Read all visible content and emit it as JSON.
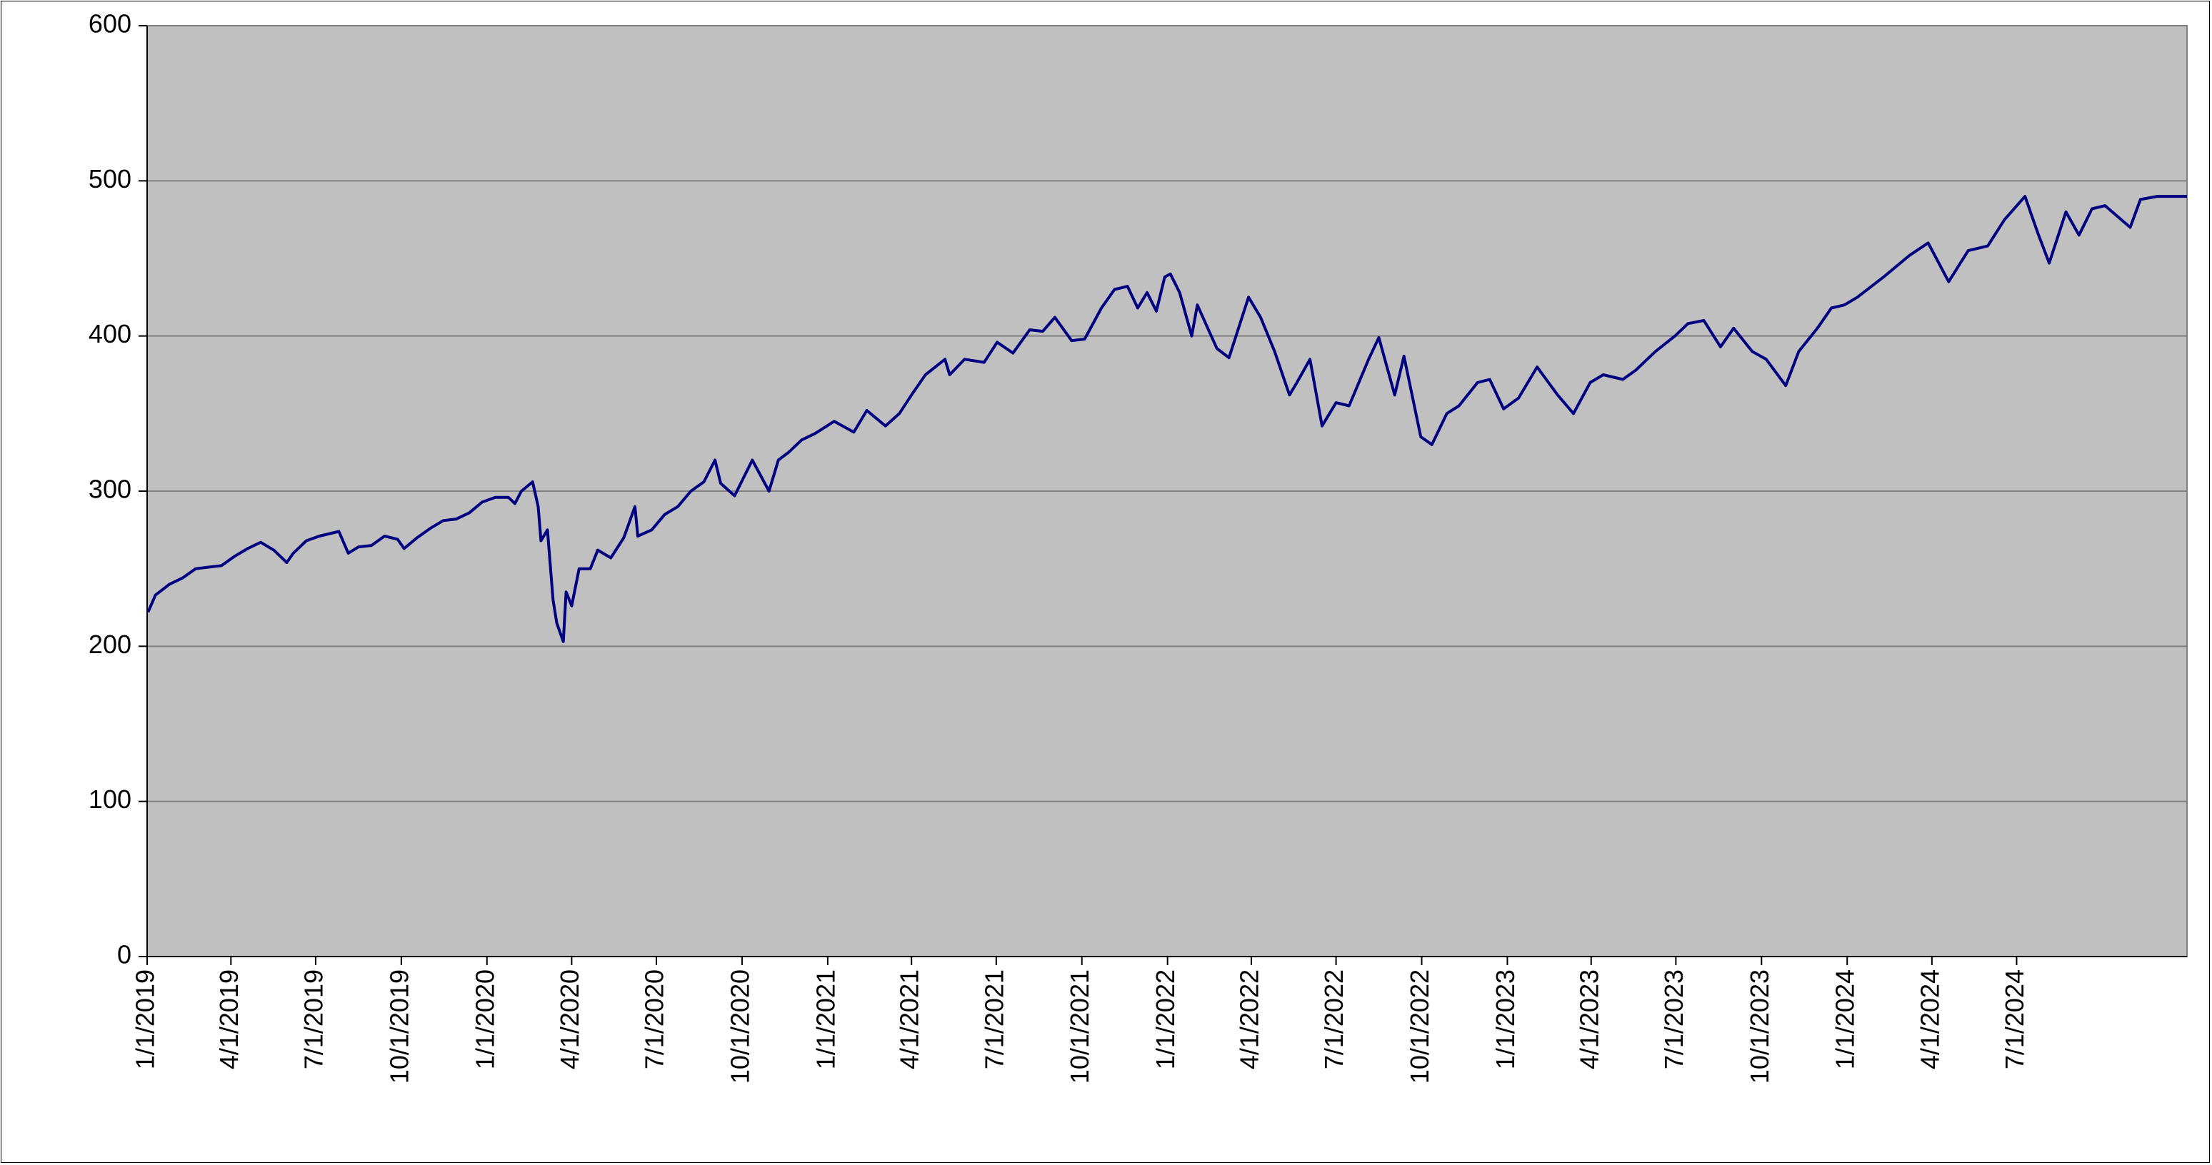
{
  "chart_data": {
    "type": "line",
    "title": "",
    "xlabel": "",
    "ylabel": "",
    "ylim": [
      0,
      600
    ],
    "yticks": [
      "0",
      "100",
      "200",
      "300",
      "400",
      "500",
      "600"
    ],
    "xlim": [
      "2019-01-01",
      "2024-12-31"
    ],
    "xticks": [
      {
        "date": "2019-01-01",
        "label": "1/1/2019"
      },
      {
        "date": "2019-04-01",
        "label": "4/1/2019"
      },
      {
        "date": "2019-07-01",
        "label": "7/1/2019"
      },
      {
        "date": "2019-10-01",
        "label": "10/1/2019"
      },
      {
        "date": "2020-01-01",
        "label": "1/1/2020"
      },
      {
        "date": "2020-04-01",
        "label": "4/1/2020"
      },
      {
        "date": "2020-07-01",
        "label": "7/1/2020"
      },
      {
        "date": "2020-10-01",
        "label": "10/1/2020"
      },
      {
        "date": "2021-01-01",
        "label": "1/1/2021"
      },
      {
        "date": "2021-04-01",
        "label": "4/1/2021"
      },
      {
        "date": "2021-07-01",
        "label": "7/1/2021"
      },
      {
        "date": "2021-10-01",
        "label": "10/1/2021"
      },
      {
        "date": "2022-01-01",
        "label": "1/1/2022"
      },
      {
        "date": "2022-04-01",
        "label": "4/1/2022"
      },
      {
        "date": "2022-07-01",
        "label": "7/1/2022"
      },
      {
        "date": "2022-10-01",
        "label": "10/1/2022"
      },
      {
        "date": "2023-01-01",
        "label": "1/1/2023"
      },
      {
        "date": "2023-04-01",
        "label": "4/1/2023"
      },
      {
        "date": "2023-07-01",
        "label": "7/1/2023"
      },
      {
        "date": "2023-10-01",
        "label": "10/1/2023"
      },
      {
        "date": "2024-01-01",
        "label": "1/1/2024"
      },
      {
        "date": "2024-04-01",
        "label": "4/1/2024"
      },
      {
        "date": "2024-07-01",
        "label": "7/1/2024"
      }
    ],
    "grid": true,
    "legend": "none",
    "colors": {
      "plot_bg": "#c0c0c0",
      "line": "#000080",
      "grid": "#808080"
    },
    "series": [
      {
        "values": [
          [
            "2019-01-02",
            222
          ],
          [
            "2019-01-10",
            233
          ],
          [
            "2019-01-25",
            240
          ],
          [
            "2019-02-08",
            244
          ],
          [
            "2019-02-22",
            250
          ],
          [
            "2019-03-08",
            251
          ],
          [
            "2019-03-22",
            252
          ],
          [
            "2019-04-05",
            258
          ],
          [
            "2019-04-19",
            263
          ],
          [
            "2019-05-03",
            267
          ],
          [
            "2019-05-17",
            262
          ],
          [
            "2019-05-31",
            254
          ],
          [
            "2019-06-07",
            260
          ],
          [
            "2019-06-21",
            268
          ],
          [
            "2019-07-05",
            271
          ],
          [
            "2019-07-26",
            274
          ],
          [
            "2019-08-05",
            260
          ],
          [
            "2019-08-16",
            264
          ],
          [
            "2019-08-30",
            265
          ],
          [
            "2019-09-13",
            271
          ],
          [
            "2019-09-27",
            269
          ],
          [
            "2019-10-04",
            263
          ],
          [
            "2019-10-18",
            270
          ],
          [
            "2019-11-01",
            276
          ],
          [
            "2019-11-15",
            281
          ],
          [
            "2019-11-29",
            282
          ],
          [
            "2019-12-13",
            286
          ],
          [
            "2019-12-27",
            293
          ],
          [
            "2020-01-10",
            296
          ],
          [
            "2020-01-24",
            296
          ],
          [
            "2020-01-31",
            292
          ],
          [
            "2020-02-07",
            300
          ],
          [
            "2020-02-19",
            306
          ],
          [
            "2020-02-25",
            290
          ],
          [
            "2020-02-28",
            268
          ],
          [
            "2020-03-06",
            275
          ],
          [
            "2020-03-12",
            230
          ],
          [
            "2020-03-16",
            215
          ],
          [
            "2020-03-23",
            203
          ],
          [
            "2020-03-26",
            235
          ],
          [
            "2020-04-01",
            226
          ],
          [
            "2020-04-09",
            250
          ],
          [
            "2020-04-21",
            250
          ],
          [
            "2020-04-29",
            262
          ],
          [
            "2020-05-13",
            257
          ],
          [
            "2020-05-27",
            270
          ],
          [
            "2020-06-08",
            290
          ],
          [
            "2020-06-11",
            271
          ],
          [
            "2020-06-26",
            275
          ],
          [
            "2020-07-10",
            285
          ],
          [
            "2020-07-24",
            290
          ],
          [
            "2020-08-07",
            300
          ],
          [
            "2020-08-21",
            306
          ],
          [
            "2020-09-02",
            320
          ],
          [
            "2020-09-08",
            305
          ],
          [
            "2020-09-23",
            297
          ],
          [
            "2020-10-12",
            320
          ],
          [
            "2020-10-30",
            300
          ],
          [
            "2020-11-09",
            320
          ],
          [
            "2020-11-20",
            325
          ],
          [
            "2020-12-04",
            333
          ],
          [
            "2020-12-18",
            337
          ],
          [
            "2021-01-08",
            345
          ],
          [
            "2021-01-29",
            338
          ],
          [
            "2021-02-12",
            352
          ],
          [
            "2021-03-04",
            342
          ],
          [
            "2021-03-19",
            350
          ],
          [
            "2021-04-01",
            362
          ],
          [
            "2021-04-16",
            375
          ],
          [
            "2021-05-07",
            385
          ],
          [
            "2021-05-12",
            375
          ],
          [
            "2021-05-28",
            385
          ],
          [
            "2021-06-18",
            383
          ],
          [
            "2021-07-02",
            396
          ],
          [
            "2021-07-19",
            389
          ],
          [
            "2021-08-06",
            404
          ],
          [
            "2021-08-20",
            403
          ],
          [
            "2021-09-02",
            412
          ],
          [
            "2021-09-20",
            397
          ],
          [
            "2021-10-04",
            398
          ],
          [
            "2021-10-22",
            418
          ],
          [
            "2021-11-05",
            430
          ],
          [
            "2021-11-19",
            432
          ],
          [
            "2021-11-30",
            418
          ],
          [
            "2021-12-10",
            428
          ],
          [
            "2021-12-20",
            416
          ],
          [
            "2021-12-29",
            438
          ],
          [
            "2022-01-04",
            440
          ],
          [
            "2022-01-14",
            428
          ],
          [
            "2022-01-27",
            400
          ],
          [
            "2022-02-02",
            420
          ],
          [
            "2022-02-23",
            392
          ],
          [
            "2022-03-08",
            386
          ],
          [
            "2022-03-29",
            425
          ],
          [
            "2022-04-11",
            412
          ],
          [
            "2022-04-26",
            390
          ],
          [
            "2022-05-12",
            362
          ],
          [
            "2022-05-20",
            370
          ],
          [
            "2022-06-03",
            385
          ],
          [
            "2022-06-16",
            342
          ],
          [
            "2022-07-01",
            357
          ],
          [
            "2022-07-15",
            355
          ],
          [
            "2022-08-05",
            385
          ],
          [
            "2022-08-16",
            399
          ],
          [
            "2022-09-02",
            362
          ],
          [
            "2022-09-12",
            387
          ],
          [
            "2022-09-30",
            335
          ],
          [
            "2022-10-12",
            330
          ],
          [
            "2022-10-28",
            350
          ],
          [
            "2022-11-10",
            355
          ],
          [
            "2022-11-30",
            370
          ],
          [
            "2022-12-13",
            372
          ],
          [
            "2022-12-28",
            353
          ],
          [
            "2023-01-13",
            360
          ],
          [
            "2023-02-02",
            380
          ],
          [
            "2023-02-24",
            362
          ],
          [
            "2023-03-13",
            350
          ],
          [
            "2023-03-31",
            370
          ],
          [
            "2023-04-14",
            375
          ],
          [
            "2023-05-05",
            372
          ],
          [
            "2023-05-19",
            378
          ],
          [
            "2023-06-09",
            390
          ],
          [
            "2023-06-30",
            400
          ],
          [
            "2023-07-14",
            408
          ],
          [
            "2023-07-31",
            410
          ],
          [
            "2023-08-18",
            393
          ],
          [
            "2023-09-01",
            405
          ],
          [
            "2023-09-21",
            390
          ],
          [
            "2023-10-06",
            385
          ],
          [
            "2023-10-27",
            368
          ],
          [
            "2023-11-10",
            390
          ],
          [
            "2023-11-30",
            405
          ],
          [
            "2023-12-15",
            418
          ],
          [
            "2023-12-29",
            420
          ],
          [
            "2024-01-12",
            425
          ],
          [
            "2024-02-09",
            438
          ],
          [
            "2024-03-08",
            452
          ],
          [
            "2024-03-28",
            460
          ],
          [
            "2024-04-19",
            435
          ],
          [
            "2024-05-10",
            455
          ],
          [
            "2024-05-31",
            458
          ],
          [
            "2024-06-18",
            475
          ],
          [
            "2024-07-10",
            490
          ],
          [
            "2024-07-24",
            466
          ],
          [
            "2024-08-05",
            447
          ],
          [
            "2024-08-23",
            480
          ],
          [
            "2024-09-06",
            465
          ],
          [
            "2024-09-20",
            482
          ],
          [
            "2024-10-04",
            484
          ],
          [
            "2024-10-31",
            470
          ],
          [
            "2024-11-11",
            488
          ],
          [
            "2024-11-29",
            490
          ],
          [
            "2024-12-31",
            490
          ]
        ]
      }
    ]
  }
}
